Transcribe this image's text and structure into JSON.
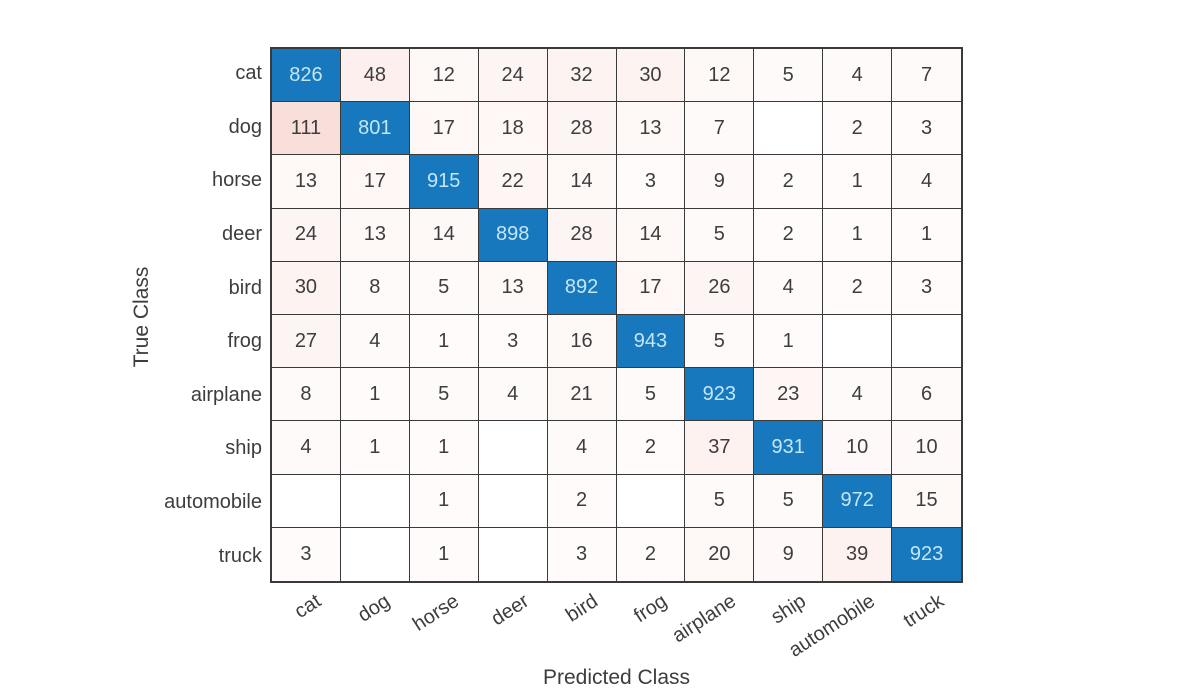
{
  "chart_data": {
    "type": "heatmap",
    "subtype": "confusion-matrix",
    "title": "",
    "xlabel": "Predicted Class",
    "ylabel": "True Class",
    "classes": [
      "cat",
      "dog",
      "horse",
      "deer",
      "bird",
      "frog",
      "airplane",
      "ship",
      "automobile",
      "truck"
    ],
    "matrix": [
      [
        826,
        48,
        12,
        24,
        32,
        30,
        12,
        5,
        4,
        7
      ],
      [
        111,
        801,
        17,
        18,
        28,
        13,
        7,
        null,
        2,
        3
      ],
      [
        13,
        17,
        915,
        22,
        14,
        3,
        9,
        2,
        1,
        4
      ],
      [
        24,
        13,
        14,
        898,
        28,
        14,
        5,
        2,
        1,
        1
      ],
      [
        30,
        8,
        5,
        13,
        892,
        17,
        26,
        4,
        2,
        3
      ],
      [
        27,
        4,
        1,
        3,
        16,
        943,
        5,
        1,
        null,
        null
      ],
      [
        8,
        1,
        5,
        4,
        21,
        5,
        923,
        23,
        4,
        6
      ],
      [
        4,
        1,
        1,
        null,
        4,
        2,
        37,
        931,
        10,
        10
      ],
      [
        null,
        null,
        1,
        null,
        2,
        null,
        5,
        5,
        972,
        15
      ],
      [
        3,
        null,
        1,
        null,
        3,
        2,
        20,
        9,
        39,
        923
      ]
    ],
    "layout": {
      "grid": "on",
      "x_tick_rotation_deg": -33
    },
    "colors": {
      "diagonal_fill": "#1878bd",
      "diagonal_text": "#c4e6f6",
      "offdiagonal_tint_rgb": "224,90,60",
      "offdiagonal_text": "#3d3d3d",
      "grid_line": "#3a3a3a",
      "empty_fill": "#ffffff",
      "background": "#ffffff",
      "tint_normalizer": 972
    }
  }
}
